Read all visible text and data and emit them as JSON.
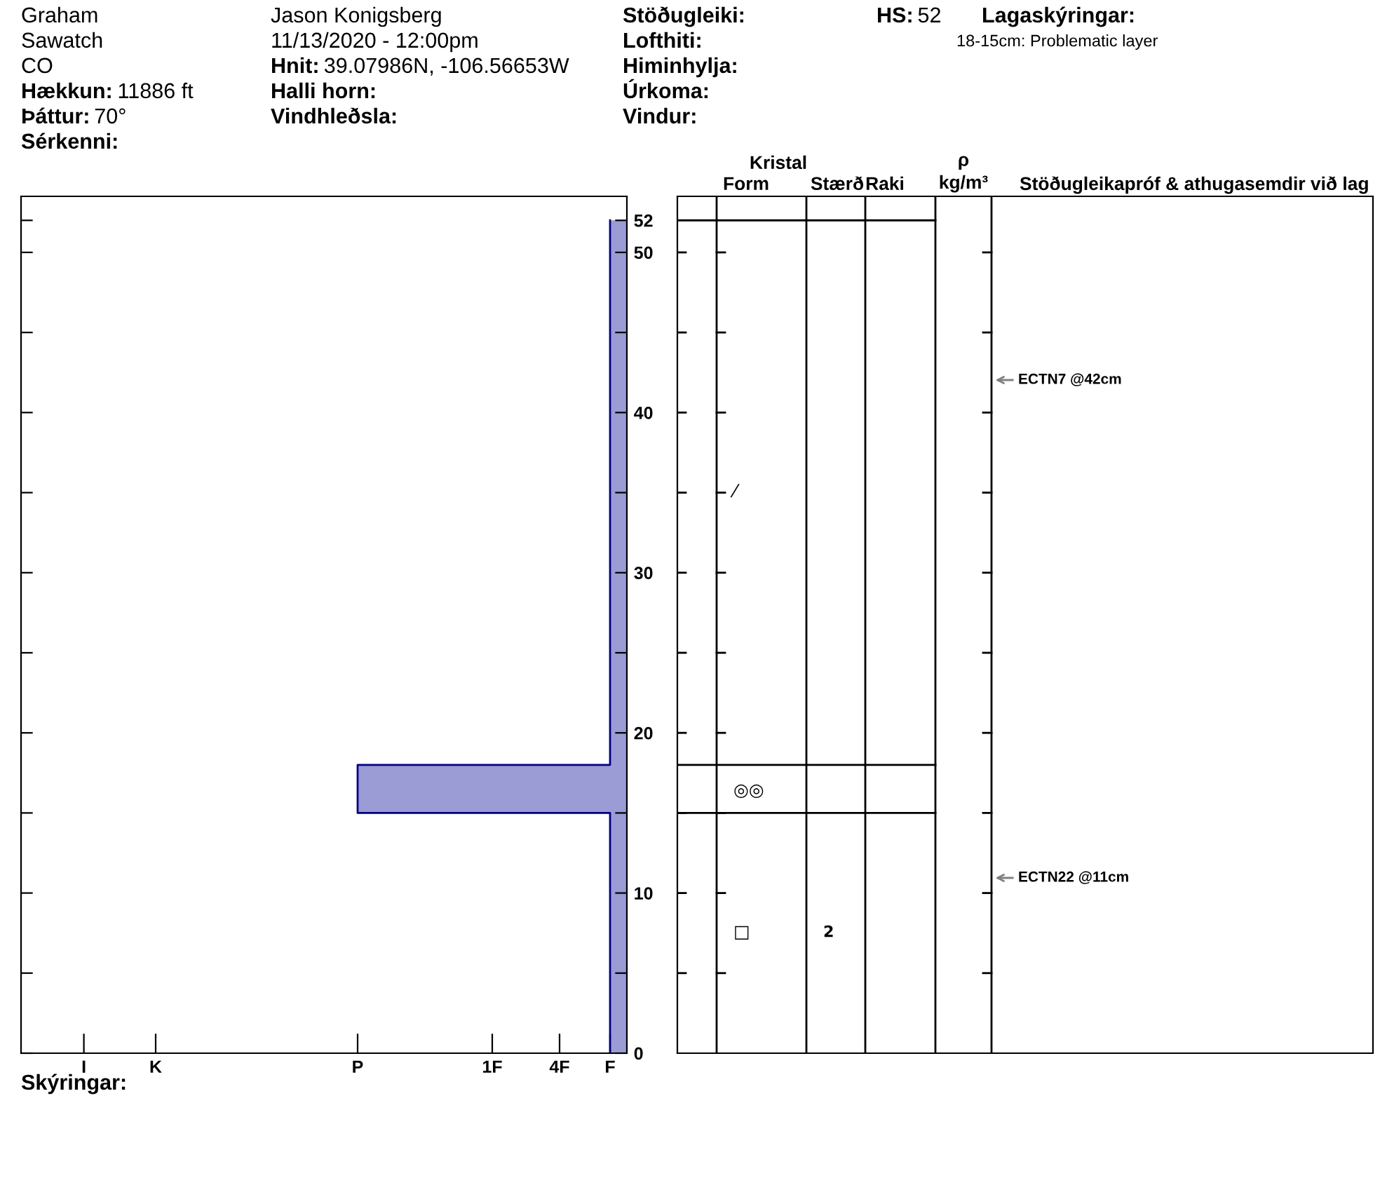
{
  "chart_data": {
    "type": "step",
    "orientation": "horizontal",
    "annotations": [
      "Graham",
      "Sawatch",
      "CO",
      "Hækkun: 11886 ft",
      "Þáttur: 70°",
      "Sérkenni:",
      "Jason Konigsberg",
      "11/13/2020 - 12:00pm",
      "Hnit: 39.07986N, -106.56653W",
      "Halli horn:",
      "Vindhleðsla:",
      "Stöðugleiki:",
      "Lofthiti:",
      "Himinhylja:",
      "Úrkoma:",
      "Vindur:",
      "HS:52",
      "Lagaskýringar:",
      "18-15cm: Problematic layer",
      "Skýringar:",
      "Kristal",
      "Form",
      "Stærð",
      "Raki",
      "ρ\nkg/m³",
      "Stöðugleikapróf & athugasemdir við lag",
      "⁄",
      "◎◎",
      "□",
      "2",
      "ECTN7 @42cm",
      "ECTN22 @11cm"
    ],
    "x": [
      0,
      15,
      18,
      52
    ],
    "series": [
      {
        "color": "#000080",
        "values": [
          6.25,
          -5,
          6.25,
          6.25
        ]
      }
    ],
    "xlim": [
      -20,
      7
    ],
    "xticks": [
      {
        "value": -17.2,
        "label": "I"
      },
      {
        "value": -14,
        "label": "K"
      },
      {
        "value": -5,
        "label": "P"
      },
      {
        "value": 1,
        "label": "1F"
      },
      {
        "value": 4,
        "label": "4F"
      },
      {
        "value": 6.25,
        "label": "F"
      }
    ],
    "ylim": [
      0,
      53.5
    ],
    "yticks": [
      0,
      {
        "value": 5,
        "label": null
      },
      10,
      {
        "value": 15,
        "label": null
      },
      20,
      {
        "value": 25,
        "label": null
      },
      30,
      {
        "value": 35,
        "label": null
      },
      40,
      {
        "value": 45,
        "label": null
      },
      50,
      52
    ]
  }
}
